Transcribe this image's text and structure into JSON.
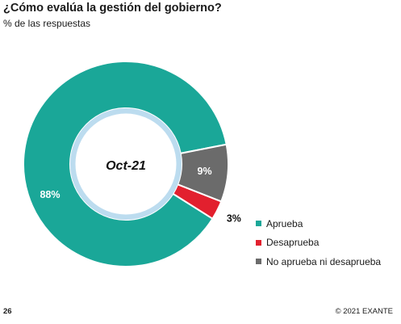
{
  "header": {
    "title": "¿Cómo evalúa la gestión del gobierno?",
    "subtitle": "% de las respuestas"
  },
  "chart_data": {
    "type": "pie",
    "variant": "donut",
    "title": "¿Cómo evalúa la gestión del gobierno?",
    "subtitle": "% de las respuestas",
    "center_label": "Oct-21",
    "categories": [
      "Aprueba",
      "Desaprueba",
      "No aprueba ni desaprueba"
    ],
    "values": [
      88,
      3,
      9
    ],
    "data_labels": [
      "88%",
      "3%",
      "9%"
    ],
    "colors": [
      "#1aa798",
      "#e2202e",
      "#6b6b6b"
    ],
    "inner_ring_color": "#bcdcef",
    "legend_placement": "bottom-right"
  },
  "footer": {
    "page_number": "26",
    "copyright": "© 2021 EXANTE"
  }
}
